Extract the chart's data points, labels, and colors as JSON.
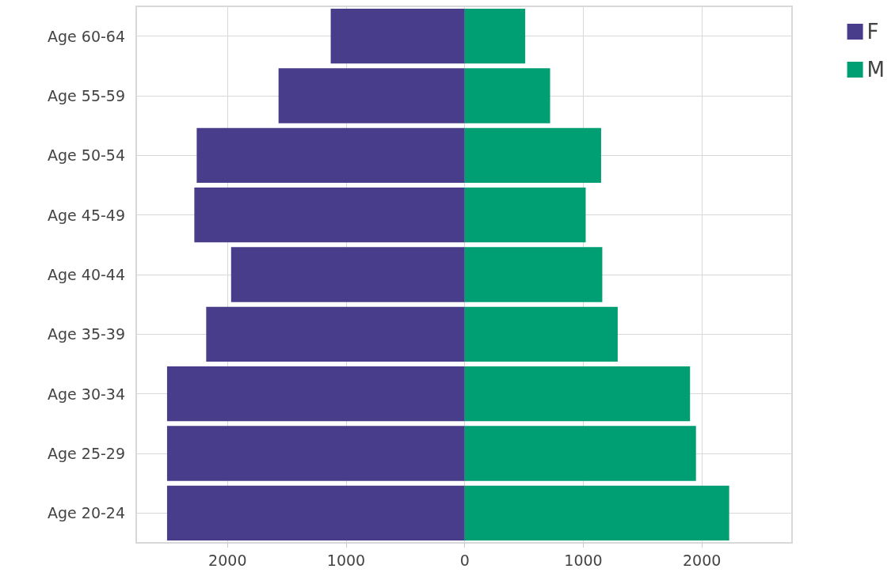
{
  "chart_data": {
    "type": "bar",
    "orientation": "horizontal",
    "categories": [
      "Age 60-64",
      "Age 55-59",
      "Age 50-54",
      "Age 45-49",
      "Age 40-44",
      "Age 35-39",
      "Age 30-34",
      "Age 25-29",
      "Age 20-24"
    ],
    "series": [
      {
        "name": "F",
        "color": "#483d8b",
        "values": [
          -1130,
          -1570,
          -2260,
          -2280,
          -1970,
          -2180,
          -2510,
          -2510,
          -2510
        ]
      },
      {
        "name": "M",
        "color": "#009e73",
        "values": [
          510,
          720,
          1150,
          1020,
          1160,
          1290,
          1900,
          1950,
          2230
        ]
      }
    ],
    "xlim": [
      -2770,
      2760
    ],
    "xticks": [
      {
        "value": -2000,
        "label": "2000"
      },
      {
        "value": -1000,
        "label": "1000"
      },
      0,
      1000,
      2000
    ],
    "grid": true,
    "legend": "top right",
    "stacked": true
  }
}
